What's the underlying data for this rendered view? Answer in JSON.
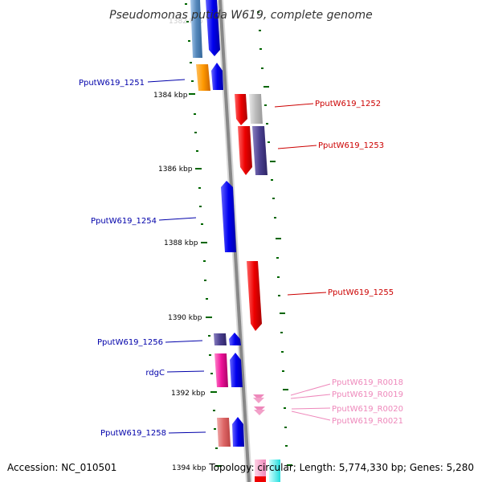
{
  "title": "Pseudomonas putida W619, complete genome",
  "footer": {
    "accession": "Accession: NC_010501",
    "topology": "Topology: circular; Length: 5,774,330 bp; Genes: 5,280"
  },
  "ticks": [
    "1384 kbp",
    "1386 kbp",
    "1388 kbp",
    "1390 kbp",
    "1392 kbp",
    "1394 kbp"
  ],
  "colors": {
    "blue": "#0000ee",
    "darkblue": "#0000aa",
    "red": "#dd0000",
    "pink": "#ee88bb",
    "backbone": "#888888",
    "tick": "#006600"
  },
  "genes": [
    {
      "name": "PputW619_1251",
      "color": "#0000aa"
    },
    {
      "name": "PputW619_1252",
      "color": "#cc0000"
    },
    {
      "name": "PputW619_1253",
      "color": "#cc0000"
    },
    {
      "name": "PputW619_1254",
      "color": "#0000aa"
    },
    {
      "name": "PputW619_1255",
      "color": "#cc0000"
    },
    {
      "name": "PputW619_1256",
      "color": "#0000aa"
    },
    {
      "name": "rdgC",
      "color": "#0000aa"
    },
    {
      "name": "PputW619_R0018",
      "color": "#ee88bb"
    },
    {
      "name": "PputW619_R0019",
      "color": "#ee88bb"
    },
    {
      "name": "PputW619_R0020",
      "color": "#ee88bb"
    },
    {
      "name": "PputW619_R0021",
      "color": "#ee88bb"
    },
    {
      "name": "PputW619_1258",
      "color": "#0000aa"
    }
  ]
}
